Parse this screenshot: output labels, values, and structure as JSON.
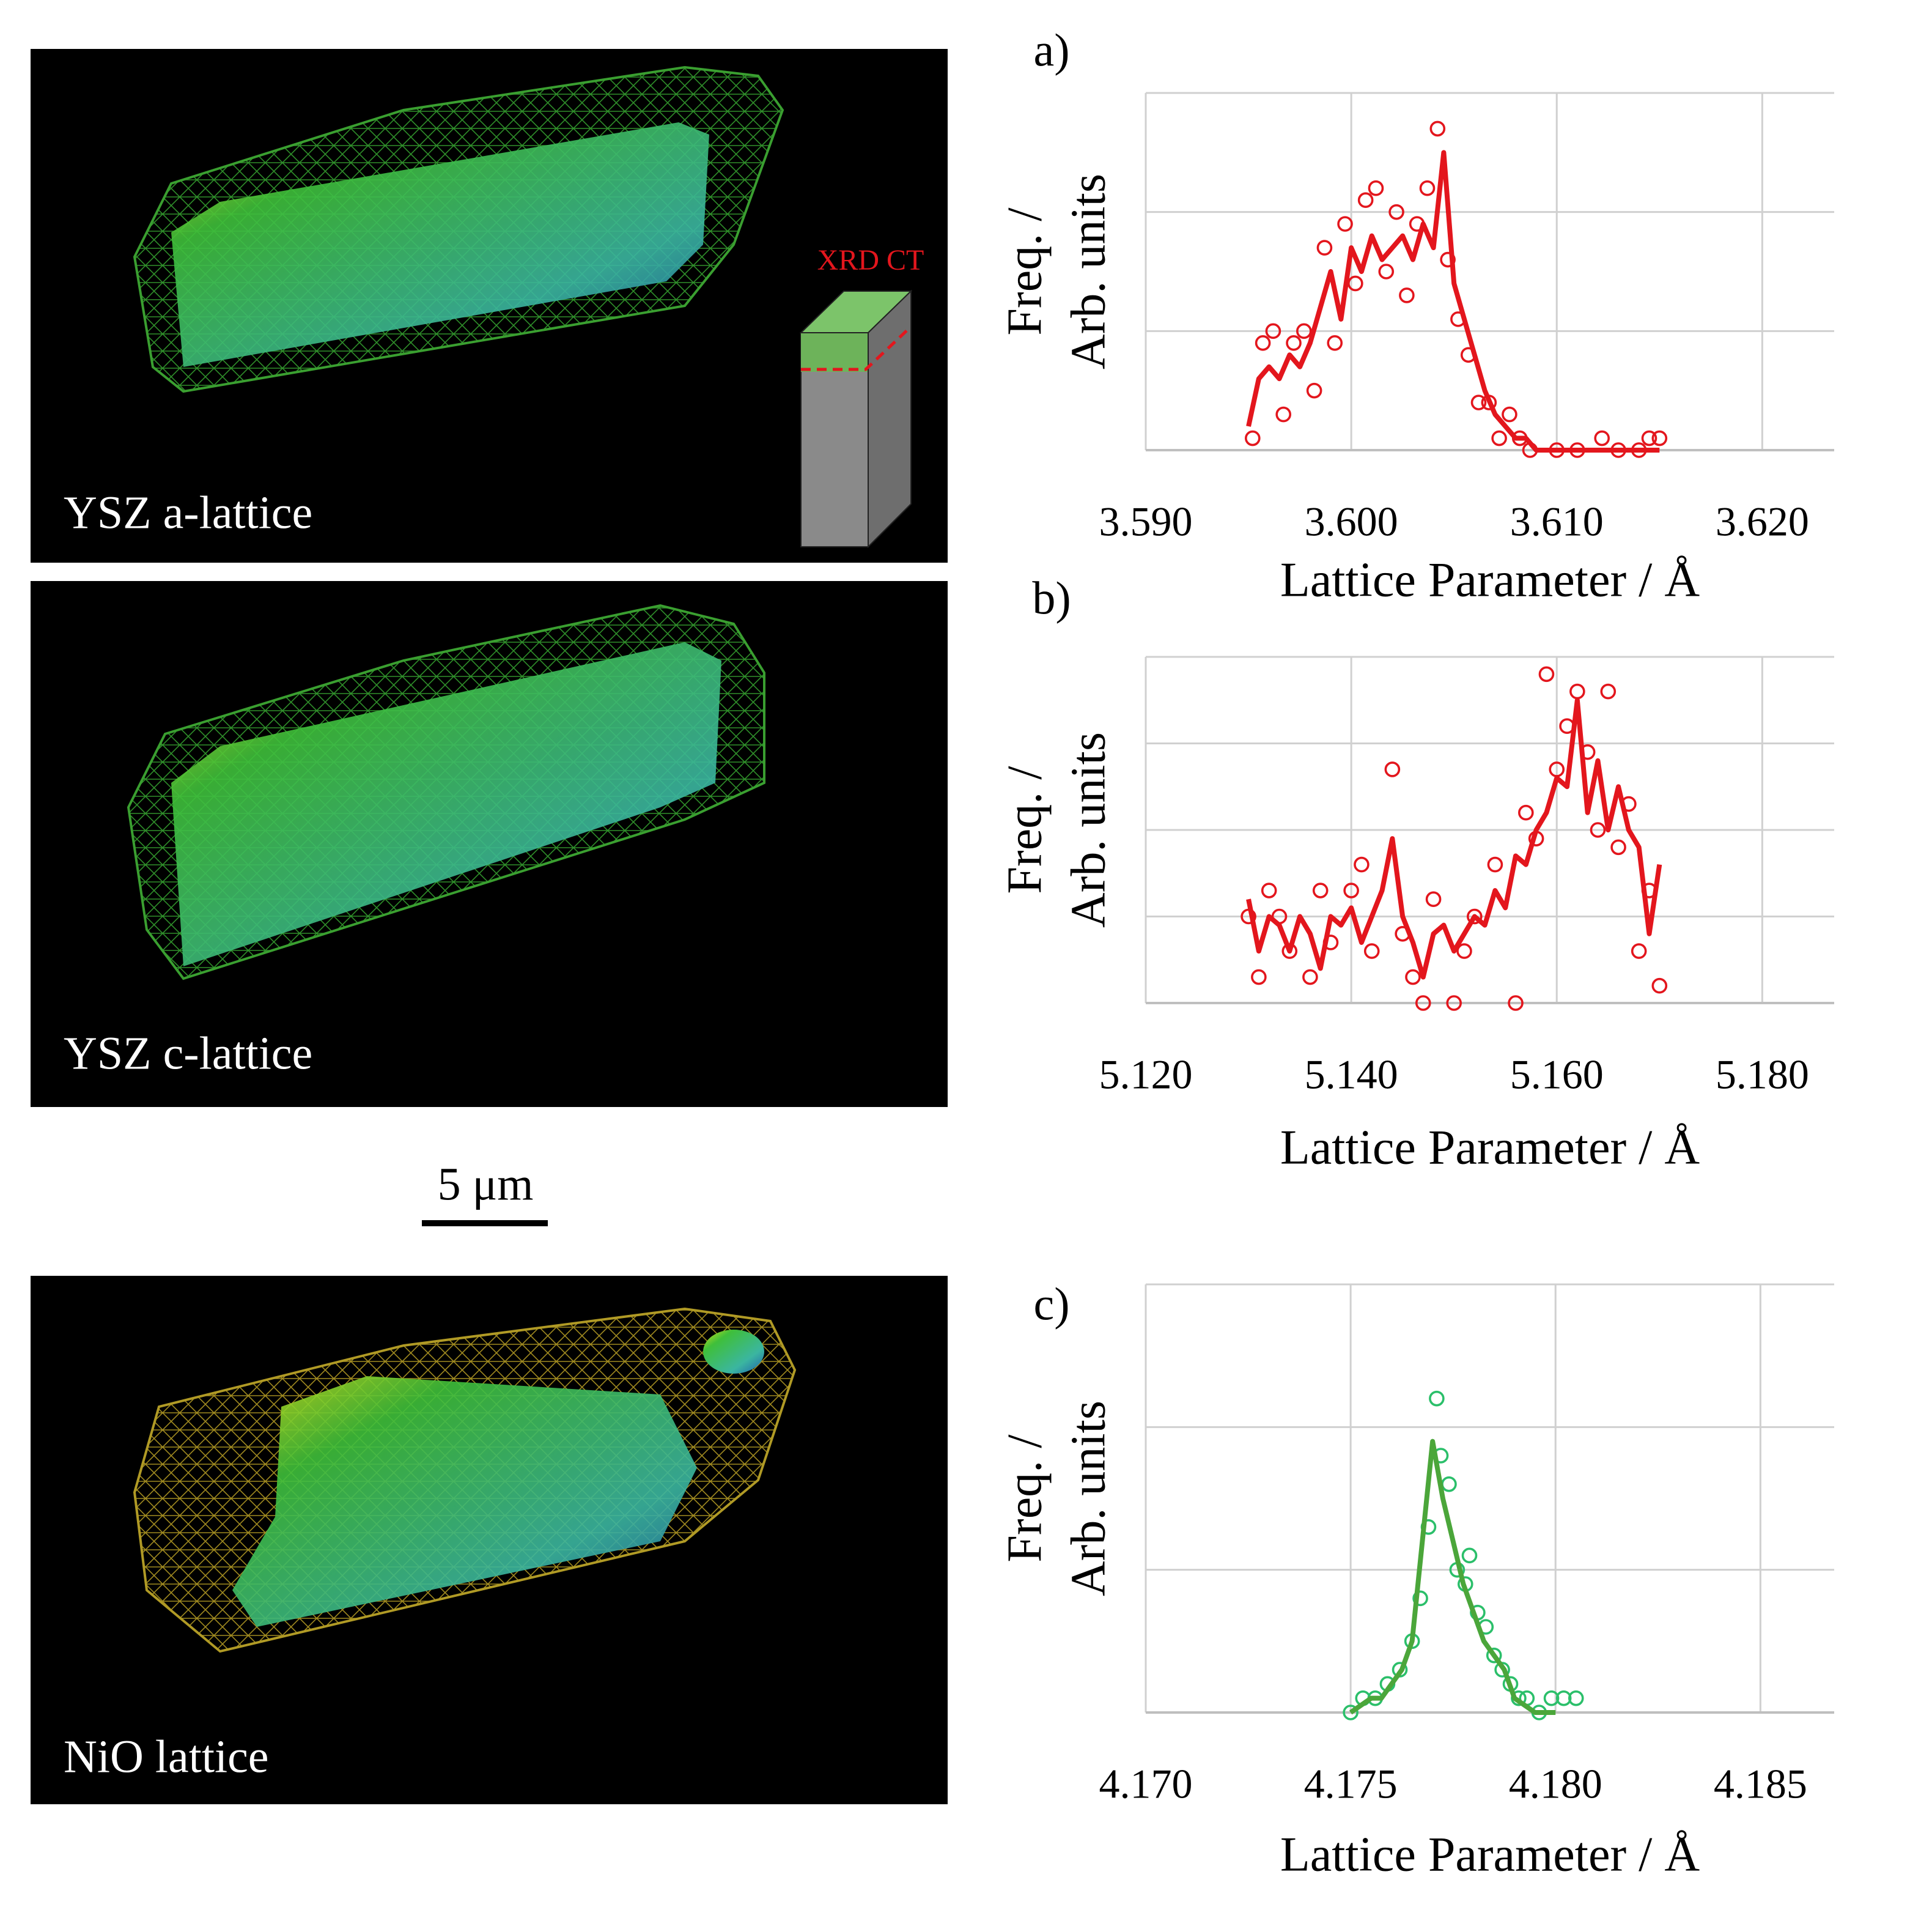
{
  "images": [
    {
      "label": "YSZ a-lattice"
    },
    {
      "label": "YSZ c-lattice"
    },
    {
      "label": "NiO lattice"
    }
  ],
  "inset_label": "XRD CT",
  "scale_bar": "5 μm",
  "chart_data": [
    {
      "type": "scatter",
      "panel_label": "a)",
      "x_label": "Lattice Parameter / Å",
      "y_label": [
        "Freq. /",
        "Arb. units"
      ],
      "xlim": [
        3.59,
        3.6235
      ],
      "ylim": [
        0,
        3
      ],
      "xticks": [
        {
          "value": 3.59,
          "label": "3.590"
        },
        {
          "value": 3.6,
          "label": "3.600"
        },
        {
          "value": 3.61,
          "label": "3.610"
        },
        {
          "value": 3.62,
          "label": "3.620"
        }
      ],
      "yticks": [
        0,
        1,
        2,
        3
      ],
      "grid": true,
      "series": [
        {
          "mode": "markers",
          "color": "#e3161d",
          "x": [
            3.5952,
            3.5957,
            3.5962,
            3.5967,
            3.5972,
            3.5977,
            3.5982,
            3.5987,
            3.5992,
            3.5997,
            3.6002,
            3.6007,
            3.6012,
            3.6017,
            3.6022,
            3.6027,
            3.6032,
            3.6037,
            3.6042,
            3.6047,
            3.6052,
            3.6057,
            3.6062,
            3.6067,
            3.6072,
            3.6077,
            3.6082,
            3.6087,
            3.61,
            3.611,
            3.6122,
            3.613,
            3.614,
            3.6145,
            3.615
          ],
          "values": [
            0.1,
            0.9,
            1.0,
            0.3,
            0.9,
            1.0,
            0.5,
            1.7,
            0.9,
            1.9,
            1.4,
            2.1,
            2.2,
            1.5,
            2.0,
            1.3,
            1.9,
            2.2,
            2.7,
            1.6,
            1.1,
            0.8,
            0.4,
            0.4,
            0.1,
            0.3,
            0.1,
            0,
            0,
            0,
            0.1,
            0,
            0,
            0.1,
            0.1
          ]
        },
        {
          "mode": "line",
          "color": "#e3161d",
          "x": [
            3.595,
            3.5955,
            3.596,
            3.5965,
            3.597,
            3.5975,
            3.598,
            3.5985,
            3.599,
            3.5995,
            3.6,
            3.6005,
            3.601,
            3.6015,
            3.602,
            3.6025,
            3.603,
            3.6035,
            3.604,
            3.6045,
            3.605,
            3.6055,
            3.606,
            3.6065,
            3.607,
            3.6075,
            3.608,
            3.6085,
            3.609,
            3.6095,
            3.61,
            3.6105,
            3.611,
            3.6115,
            3.612,
            3.6125,
            3.613,
            3.6135,
            3.614,
            3.6145,
            3.615
          ],
          "values": [
            0.2,
            0.6,
            0.7,
            0.6,
            0.8,
            0.7,
            0.9,
            1.2,
            1.5,
            1.1,
            1.7,
            1.5,
            1.8,
            1.6,
            1.7,
            1.8,
            1.6,
            1.9,
            1.7,
            2.5,
            1.4,
            1.1,
            0.8,
            0.5,
            0.3,
            0.2,
            0.1,
            0.1,
            0,
            0,
            0,
            0,
            0,
            0,
            0,
            0,
            0,
            0,
            0,
            0,
            0
          ]
        }
      ]
    },
    {
      "type": "scatter",
      "panel_label": "b)",
      "x_label": "Lattice Parameter / Å",
      "y_label": [
        "Freq. /",
        "Arb. units"
      ],
      "xlim": [
        5.12,
        5.187
      ],
      "ylim": [
        0,
        4
      ],
      "xticks": [
        {
          "value": 5.12,
          "label": "5.120"
        },
        {
          "value": 5.14,
          "label": "5.140"
        },
        {
          "value": 5.16,
          "label": "5.160"
        },
        {
          "value": 5.18,
          "label": "5.180"
        }
      ],
      "yticks": [
        0,
        1,
        2,
        3,
        4
      ],
      "grid": true,
      "series": [
        {
          "mode": "markers",
          "color": "#e3161d",
          "x": [
            5.13,
            5.131,
            5.132,
            5.133,
            5.134,
            5.136,
            5.137,
            5.138,
            5.14,
            5.141,
            5.142,
            5.144,
            5.145,
            5.146,
            5.147,
            5.148,
            5.15,
            5.151,
            5.152,
            5.154,
            5.156,
            5.157,
            5.158,
            5.159,
            5.16,
            5.161,
            5.162,
            5.163,
            5.164,
            5.165,
            5.166,
            5.167,
            5.168,
            5.169,
            5.17
          ],
          "values": [
            1.0,
            0.3,
            1.3,
            1.0,
            0.6,
            0.3,
            1.3,
            0.7,
            1.3,
            1.6,
            0.6,
            2.7,
            0.8,
            0.3,
            0,
            1.2,
            0,
            0.6,
            1.0,
            1.6,
            0,
            2.2,
            1.9,
            3.8,
            2.7,
            3.2,
            3.6,
            2.9,
            2.0,
            3.6,
            1.8,
            2.3,
            0.6,
            1.3,
            0.2
          ]
        },
        {
          "mode": "line",
          "color": "#e3161d",
          "x": [
            5.13,
            5.131,
            5.132,
            5.133,
            5.134,
            5.135,
            5.136,
            5.137,
            5.138,
            5.139,
            5.14,
            5.141,
            5.142,
            5.143,
            5.144,
            5.145,
            5.146,
            5.147,
            5.148,
            5.149,
            5.15,
            5.151,
            5.152,
            5.153,
            5.154,
            5.155,
            5.156,
            5.157,
            5.158,
            5.159,
            5.16,
            5.161,
            5.162,
            5.163,
            5.164,
            5.165,
            5.166,
            5.167,
            5.168,
            5.169,
            5.17
          ],
          "values": [
            1.2,
            0.6,
            1.0,
            0.9,
            0.6,
            1.0,
            0.8,
            0.4,
            1.0,
            0.9,
            1.1,
            0.7,
            1.0,
            1.3,
            1.9,
            1.0,
            0.7,
            0.3,
            0.8,
            0.9,
            0.6,
            0.8,
            1.0,
            0.9,
            1.3,
            1.1,
            1.7,
            1.6,
            2.0,
            2.2,
            2.6,
            2.5,
            3.5,
            2.2,
            2.8,
            2.0,
            2.5,
            2.0,
            1.8,
            0.8,
            1.6
          ]
        }
      ]
    },
    {
      "type": "scatter",
      "panel_label": "c)",
      "x_label": "Lattice Parameter / Å",
      "y_label": [
        "Freq. /",
        "Arb. units"
      ],
      "xlim": [
        4.17,
        4.1868
      ],
      "ylim": [
        0,
        3
      ],
      "xticks": [
        {
          "value": 4.17,
          "label": "4.170"
        },
        {
          "value": 4.175,
          "label": "4.175"
        },
        {
          "value": 4.18,
          "label": "4.180"
        },
        {
          "value": 4.185,
          "label": "4.185"
        }
      ],
      "yticks": [
        0,
        1,
        2,
        3
      ],
      "grid": true,
      "series": [
        {
          "mode": "markers",
          "color": "#2bbf6a",
          "x": [
            4.175,
            4.1753,
            4.1756,
            4.1759,
            4.1762,
            4.1765,
            4.1767,
            4.1769,
            4.1771,
            4.1772,
            4.1774,
            4.1776,
            4.1778,
            4.1779,
            4.1781,
            4.1783,
            4.1785,
            4.1787,
            4.1789,
            4.1791,
            4.1793,
            4.1796,
            4.1799,
            4.1802,
            4.1805
          ],
          "values": [
            0,
            0.1,
            0.1,
            0.2,
            0.3,
            0.5,
            0.8,
            1.3,
            2.2,
            1.8,
            1.6,
            1.0,
            0.9,
            1.1,
            0.7,
            0.6,
            0.4,
            0.3,
            0.2,
            0.1,
            0.1,
            0,
            0.1,
            0.1,
            0.1
          ]
        },
        {
          "mode": "line",
          "color": "#4ba63a",
          "x": [
            4.175,
            4.17525,
            4.1755,
            4.17575,
            4.176,
            4.17625,
            4.1765,
            4.17675,
            4.177,
            4.17725,
            4.1775,
            4.17775,
            4.178,
            4.17825,
            4.1785,
            4.17875,
            4.179,
            4.17925,
            4.1795,
            4.17975,
            4.18
          ],
          "values": [
            0,
            0.05,
            0.1,
            0.1,
            0.2,
            0.3,
            0.5,
            1.2,
            1.9,
            1.5,
            1.2,
            0.9,
            0.7,
            0.5,
            0.4,
            0.3,
            0.1,
            0.05,
            0,
            0,
            0
          ]
        }
      ]
    }
  ]
}
